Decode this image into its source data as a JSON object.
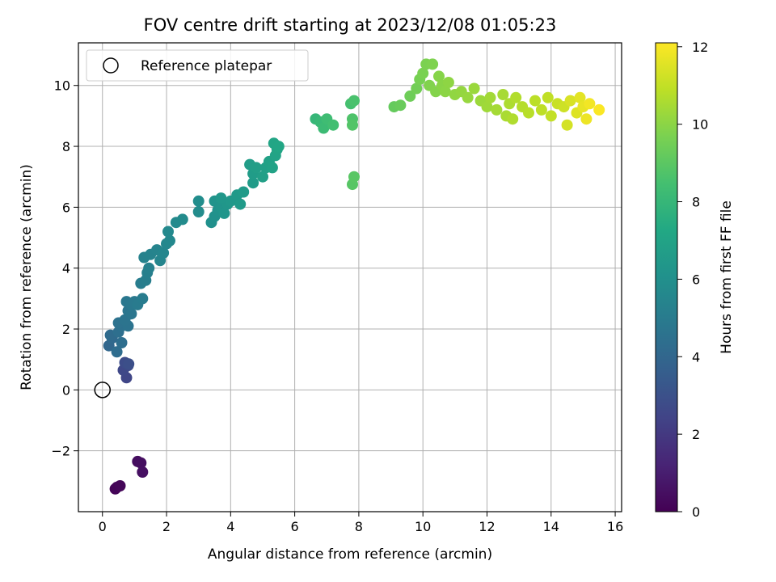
{
  "chart_data": {
    "type": "scatter",
    "title": "FOV centre drift starting at 2023/12/08 01:05:23",
    "xlabel": "Angular distance from reference (arcmin)",
    "ylabel": "Rotation from reference (arcmin)",
    "xlim": [
      -0.75,
      16.2
    ],
    "ylim": [
      -4.0,
      11.4
    ],
    "xticks": [
      0,
      2,
      4,
      6,
      8,
      10,
      12,
      14,
      16
    ],
    "yticks": [
      -2,
      0,
      2,
      4,
      6,
      8,
      10
    ],
    "ytick_labels": [
      "−2",
      "0",
      "2",
      "4",
      "6",
      "8",
      "10"
    ],
    "grid": true,
    "legend": {
      "position": "upper-left",
      "entries": [
        {
          "label": "Reference platepar",
          "marker": "open-circle"
        }
      ]
    },
    "colorbar": {
      "label": "Hours from first FF file",
      "colormap": "viridis",
      "range": [
        0,
        12.1
      ],
      "ticks": [
        0,
        2,
        4,
        6,
        8,
        10,
        12
      ]
    },
    "reference_point": {
      "x": 0,
      "y": 0
    },
    "points": [
      [
        0.4,
        -3.25,
        0.1
      ],
      [
        0.45,
        -3.2,
        0.15
      ],
      [
        0.55,
        -3.15,
        0.2
      ],
      [
        1.1,
        -2.35,
        0.4
      ],
      [
        1.2,
        -2.4,
        0.45
      ],
      [
        1.25,
        -2.7,
        0.5
      ],
      [
        0.75,
        0.4,
        2.5
      ],
      [
        0.65,
        0.65,
        2.6
      ],
      [
        0.8,
        0.8,
        2.7
      ],
      [
        0.7,
        0.9,
        2.8
      ],
      [
        0.82,
        0.85,
        2.9
      ],
      [
        0.2,
        1.45,
        4.0
      ],
      [
        0.3,
        1.7,
        4.1
      ],
      [
        0.25,
        1.8,
        4.2
      ],
      [
        0.45,
        1.25,
        4.3
      ],
      [
        0.6,
        1.55,
        4.35
      ],
      [
        0.5,
        1.9,
        4.4
      ],
      [
        0.6,
        2.1,
        4.5
      ],
      [
        0.5,
        2.2,
        4.55
      ],
      [
        0.8,
        2.1,
        4.6
      ],
      [
        0.7,
        2.3,
        4.65
      ],
      [
        0.8,
        2.6,
        4.7
      ],
      [
        0.9,
        2.5,
        4.75
      ],
      [
        0.75,
        2.9,
        4.8
      ],
      [
        0.9,
        2.8,
        4.85
      ],
      [
        1.0,
        2.9,
        4.9
      ],
      [
        1.1,
        2.8,
        5.0
      ],
      [
        1.25,
        3.0,
        5.05
      ],
      [
        1.2,
        3.5,
        5.1
      ],
      [
        1.35,
        3.6,
        5.15
      ],
      [
        1.4,
        3.85,
        5.2
      ],
      [
        1.45,
        4.0,
        5.25
      ],
      [
        1.3,
        4.35,
        5.3
      ],
      [
        1.5,
        4.45,
        5.35
      ],
      [
        1.7,
        4.6,
        5.4
      ],
      [
        1.8,
        4.25,
        5.45
      ],
      [
        1.9,
        4.5,
        5.5
      ],
      [
        2.0,
        4.8,
        5.55
      ],
      [
        2.1,
        4.9,
        5.6
      ],
      [
        2.05,
        5.2,
        5.65
      ],
      [
        2.3,
        5.5,
        5.7
      ],
      [
        2.5,
        5.6,
        5.75
      ],
      [
        3.0,
        5.85,
        5.8
      ],
      [
        3.0,
        6.2,
        5.85
      ],
      [
        3.4,
        5.5,
        6.0
      ],
      [
        3.5,
        5.7,
        6.05
      ],
      [
        3.6,
        5.9,
        6.1
      ],
      [
        3.5,
        6.2,
        6.15
      ],
      [
        3.7,
        6.0,
        6.2
      ],
      [
        3.8,
        5.8,
        6.25
      ],
      [
        3.9,
        6.1,
        6.3
      ],
      [
        3.7,
        6.3,
        6.35
      ],
      [
        4.0,
        6.2,
        6.4
      ],
      [
        4.2,
        6.4,
        6.45
      ],
      [
        4.3,
        6.1,
        6.5
      ],
      [
        4.4,
        6.5,
        6.55
      ],
      [
        4.7,
        6.8,
        6.6
      ],
      [
        4.7,
        7.1,
        6.65
      ],
      [
        4.6,
        7.4,
        6.7
      ],
      [
        4.8,
        7.3,
        6.75
      ],
      [
        5.0,
        7.0,
        6.8
      ],
      [
        5.1,
        7.3,
        6.85
      ],
      [
        5.2,
        7.5,
        6.9
      ],
      [
        5.3,
        7.3,
        6.95
      ],
      [
        5.4,
        7.7,
        7.0
      ],
      [
        5.45,
        7.9,
        7.05
      ],
      [
        5.35,
        8.1,
        7.1
      ],
      [
        5.5,
        8.0,
        7.15
      ],
      [
        6.65,
        8.9,
        8.0
      ],
      [
        6.8,
        8.8,
        8.1
      ],
      [
        6.9,
        8.6,
        8.2
      ],
      [
        7.0,
        8.9,
        8.3
      ],
      [
        7.2,
        8.7,
        8.4
      ],
      [
        7.75,
        9.4,
        8.5
      ],
      [
        7.85,
        9.5,
        8.6
      ],
      [
        7.8,
        8.9,
        8.7
      ],
      [
        7.8,
        8.7,
        8.8
      ],
      [
        7.8,
        6.75,
        8.9
      ],
      [
        7.85,
        7.0,
        8.95
      ],
      [
        9.1,
        9.3,
        9.2
      ],
      [
        9.3,
        9.35,
        9.3
      ],
      [
        9.6,
        9.65,
        9.4
      ],
      [
        9.8,
        9.9,
        9.5
      ],
      [
        9.9,
        10.2,
        9.6
      ],
      [
        10.0,
        10.4,
        9.65
      ],
      [
        10.1,
        10.7,
        9.7
      ],
      [
        10.3,
        10.7,
        9.75
      ],
      [
        10.2,
        10.0,
        9.8
      ],
      [
        10.4,
        9.8,
        9.85
      ],
      [
        10.5,
        10.3,
        9.9
      ],
      [
        10.6,
        10.0,
        9.95
      ],
      [
        10.7,
        9.8,
        10.0
      ],
      [
        10.8,
        10.1,
        10.05
      ],
      [
        11.0,
        9.7,
        10.1
      ],
      [
        11.2,
        9.8,
        10.15
      ],
      [
        11.4,
        9.6,
        10.2
      ],
      [
        11.6,
        9.9,
        10.25
      ],
      [
        11.8,
        9.5,
        10.3
      ],
      [
        12.0,
        9.3,
        10.35
      ],
      [
        12.1,
        9.6,
        10.4
      ],
      [
        12.3,
        9.2,
        10.45
      ],
      [
        12.5,
        9.7,
        10.5
      ],
      [
        12.6,
        9.0,
        10.55
      ],
      [
        12.7,
        9.4,
        10.6
      ],
      [
        12.8,
        8.9,
        10.65
      ],
      [
        12.9,
        9.6,
        10.7
      ],
      [
        13.1,
        9.3,
        10.75
      ],
      [
        13.3,
        9.1,
        10.8
      ],
      [
        13.5,
        9.5,
        10.85
      ],
      [
        13.7,
        9.2,
        10.9
      ],
      [
        13.9,
        9.6,
        10.95
      ],
      [
        14.0,
        9.0,
        11.0
      ],
      [
        14.2,
        9.4,
        11.1
      ],
      [
        14.4,
        9.3,
        11.2
      ],
      [
        14.5,
        8.7,
        11.3
      ],
      [
        14.6,
        9.5,
        11.4
      ],
      [
        14.8,
        9.1,
        11.5
      ],
      [
        14.9,
        9.6,
        11.6
      ],
      [
        15.0,
        9.3,
        11.7
      ],
      [
        15.1,
        8.9,
        11.8
      ],
      [
        15.2,
        9.4,
        11.9
      ],
      [
        15.5,
        9.2,
        12.05
      ]
    ]
  }
}
